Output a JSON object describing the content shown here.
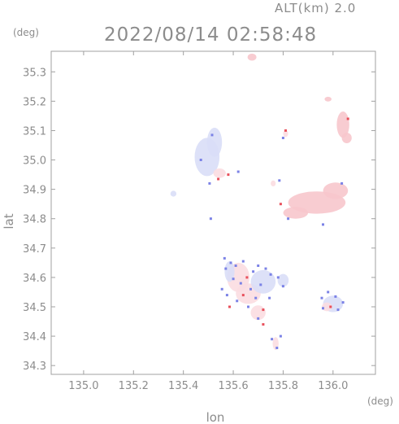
{
  "header": {
    "altitude_label": "ALT(km) 2.0",
    "datetime": "2022/08/14 02:58:48"
  },
  "chart_data": {
    "type": "heatmap",
    "title": "2022/08/14 02:58:48",
    "subtitle": "ALT(km) 2.0",
    "xlabel": "lon",
    "ylabel": "lat",
    "x_unit": "(deg)",
    "y_unit": "(deg)",
    "xlim": [
      134.87,
      136.17
    ],
    "ylim": [
      34.27,
      35.37
    ],
    "x_ticks": [
      135.0,
      135.2,
      135.4,
      135.6,
      135.8,
      136.0
    ],
    "x_tick_labels": [
      "135.0",
      "135.2",
      "135.4",
      "135.6",
      "135.8",
      "136.0"
    ],
    "y_ticks": [
      34.3,
      34.4,
      34.5,
      34.6,
      34.7,
      34.8,
      34.9,
      35.0,
      35.1,
      35.2,
      35.3
    ],
    "y_tick_labels": [
      "34.3",
      "34.4",
      "34.5",
      "34.6",
      "34.7",
      "34.8",
      "34.9",
      "35.0",
      "35.1",
      "35.2",
      "35.3"
    ],
    "grid": false,
    "colors": {
      "axis": "#a0a0a0",
      "text": "#8c8c8c",
      "pink": "#f7c6cc",
      "light_pink": "#fbdde1",
      "light_blue": "#d9def7",
      "blue": "#7b82e6",
      "red": "#e8505c"
    },
    "echo_regions": [
      {
        "name": "north-top-blob",
        "lon": 135.675,
        "lat": 35.35,
        "rlon": 0.018,
        "rlat": 0.012,
        "color": "pink"
      },
      {
        "name": "north-small-pink",
        "lon": 135.98,
        "lat": 35.207,
        "rlon": 0.014,
        "rlat": 0.008,
        "color": "pink"
      },
      {
        "name": "east-pink-strip",
        "lon": 136.04,
        "lat": 35.12,
        "rlon": 0.025,
        "rlat": 0.045,
        "color": "pink"
      },
      {
        "name": "east-pink-strip-2",
        "lon": 136.055,
        "lat": 35.075,
        "rlon": 0.02,
        "rlat": 0.018,
        "color": "pink"
      },
      {
        "name": "central-blue-cloud",
        "lon": 135.495,
        "lat": 35.01,
        "rlon": 0.05,
        "rlat": 0.065,
        "color": "light_blue"
      },
      {
        "name": "central-blue-cloud-2",
        "lon": 135.525,
        "lat": 35.06,
        "rlon": 0.03,
        "rlat": 0.05,
        "color": "light_blue"
      },
      {
        "name": "central-pink-patch",
        "lon": 135.545,
        "lat": 34.955,
        "rlon": 0.025,
        "rlat": 0.016,
        "color": "light_pink"
      },
      {
        "name": "west-blue-dot",
        "lon": 135.36,
        "lat": 34.885,
        "rlon": 0.012,
        "rlat": 0.01,
        "color": "light_blue"
      },
      {
        "name": "main-pink-band",
        "lon": 135.935,
        "lat": 34.855,
        "rlon": 0.115,
        "rlat": 0.038,
        "color": "pink"
      },
      {
        "name": "main-pink-band-2",
        "lon": 136.01,
        "lat": 34.895,
        "rlon": 0.05,
        "rlat": 0.028,
        "color": "pink"
      },
      {
        "name": "main-pink-band-3",
        "lon": 135.85,
        "lat": 34.82,
        "rlon": 0.05,
        "rlat": 0.02,
        "color": "pink"
      },
      {
        "name": "mid-cell-1",
        "lon": 135.81,
        "lat": 35.09,
        "rlon": 0.01,
        "rlat": 0.012,
        "color": "light_pink"
      },
      {
        "name": "mid-cell-2",
        "lon": 135.76,
        "lat": 34.92,
        "rlon": 0.01,
        "rlat": 0.01,
        "color": "light_pink"
      },
      {
        "name": "south-cluster-a",
        "lon": 135.62,
        "lat": 34.6,
        "rlon": 0.045,
        "rlat": 0.05,
        "color": "light_pink"
      },
      {
        "name": "south-cluster-b",
        "lon": 135.66,
        "lat": 34.545,
        "rlon": 0.05,
        "rlat": 0.035,
        "color": "light_pink"
      },
      {
        "name": "south-cluster-c",
        "lon": 135.72,
        "lat": 34.585,
        "rlon": 0.05,
        "rlat": 0.04,
        "color": "light_blue"
      },
      {
        "name": "south-cluster-d",
        "lon": 135.7,
        "lat": 34.48,
        "rlon": 0.03,
        "rlat": 0.025,
        "color": "light_pink"
      },
      {
        "name": "south-cluster-e",
        "lon": 135.8,
        "lat": 34.59,
        "rlon": 0.022,
        "rlat": 0.022,
        "color": "light_blue"
      },
      {
        "name": "south-cluster-f",
        "lon": 135.585,
        "lat": 34.62,
        "rlon": 0.02,
        "rlat": 0.035,
        "color": "light_blue"
      },
      {
        "name": "southeast-cluster",
        "lon": 136.0,
        "lat": 34.51,
        "rlon": 0.04,
        "rlat": 0.028,
        "color": "light_blue"
      },
      {
        "name": "southeast-cluster-2",
        "lon": 135.975,
        "lat": 34.5,
        "rlon": 0.02,
        "rlat": 0.015,
        "color": "light_pink"
      },
      {
        "name": "south-tail",
        "lon": 135.77,
        "lat": 34.375,
        "rlon": 0.012,
        "rlat": 0.022,
        "color": "light_pink"
      }
    ],
    "echo_cells": [
      {
        "lon": 135.515,
        "lat": 35.085,
        "color": "blue"
      },
      {
        "lon": 135.47,
        "lat": 35.0,
        "color": "blue"
      },
      {
        "lon": 135.54,
        "lat": 34.935,
        "color": "red"
      },
      {
        "lon": 135.505,
        "lat": 34.92,
        "color": "blue"
      },
      {
        "lon": 135.58,
        "lat": 34.95,
        "color": "red"
      },
      {
        "lon": 135.62,
        "lat": 34.96,
        "color": "blue"
      },
      {
        "lon": 135.81,
        "lat": 35.1,
        "color": "red"
      },
      {
        "lon": 135.8,
        "lat": 35.075,
        "color": "blue"
      },
      {
        "lon": 135.785,
        "lat": 34.93,
        "color": "blue"
      },
      {
        "lon": 135.79,
        "lat": 34.85,
        "color": "red"
      },
      {
        "lon": 135.82,
        "lat": 34.8,
        "color": "blue"
      },
      {
        "lon": 135.96,
        "lat": 34.78,
        "color": "blue"
      },
      {
        "lon": 136.06,
        "lat": 35.14,
        "color": "red"
      },
      {
        "lon": 136.035,
        "lat": 34.92,
        "color": "blue"
      },
      {
        "lon": 135.51,
        "lat": 34.8,
        "color": "blue"
      },
      {
        "lon": 135.565,
        "lat": 34.665,
        "color": "blue"
      },
      {
        "lon": 135.59,
        "lat": 34.65,
        "color": "blue"
      },
      {
        "lon": 135.61,
        "lat": 34.64,
        "color": "blue"
      },
      {
        "lon": 135.64,
        "lat": 34.655,
        "color": "blue"
      },
      {
        "lon": 135.57,
        "lat": 34.63,
        "color": "blue"
      },
      {
        "lon": 135.6,
        "lat": 34.595,
        "color": "blue"
      },
      {
        "lon": 135.63,
        "lat": 34.58,
        "color": "blue"
      },
      {
        "lon": 135.655,
        "lat": 34.6,
        "color": "red"
      },
      {
        "lon": 135.68,
        "lat": 34.62,
        "color": "blue"
      },
      {
        "lon": 135.7,
        "lat": 34.64,
        "color": "blue"
      },
      {
        "lon": 135.73,
        "lat": 34.63,
        "color": "blue"
      },
      {
        "lon": 135.75,
        "lat": 34.61,
        "color": "blue"
      },
      {
        "lon": 135.78,
        "lat": 34.6,
        "color": "blue"
      },
      {
        "lon": 135.8,
        "lat": 34.57,
        "color": "blue"
      },
      {
        "lon": 135.71,
        "lat": 34.575,
        "color": "blue"
      },
      {
        "lon": 135.67,
        "lat": 34.56,
        "color": "blue"
      },
      {
        "lon": 135.64,
        "lat": 34.54,
        "color": "red"
      },
      {
        "lon": 135.615,
        "lat": 34.52,
        "color": "blue"
      },
      {
        "lon": 135.585,
        "lat": 34.5,
        "color": "red"
      },
      {
        "lon": 135.66,
        "lat": 34.5,
        "color": "blue"
      },
      {
        "lon": 135.69,
        "lat": 34.53,
        "color": "blue"
      },
      {
        "lon": 135.72,
        "lat": 34.49,
        "color": "red"
      },
      {
        "lon": 135.745,
        "lat": 34.53,
        "color": "blue"
      },
      {
        "lon": 135.7,
        "lat": 34.46,
        "color": "blue"
      },
      {
        "lon": 135.72,
        "lat": 34.44,
        "color": "red"
      },
      {
        "lon": 135.755,
        "lat": 34.39,
        "color": "blue"
      },
      {
        "lon": 135.775,
        "lat": 34.36,
        "color": "blue"
      },
      {
        "lon": 135.79,
        "lat": 34.4,
        "color": "blue"
      },
      {
        "lon": 135.955,
        "lat": 34.53,
        "color": "blue"
      },
      {
        "lon": 135.98,
        "lat": 34.55,
        "color": "blue"
      },
      {
        "lon": 136.01,
        "lat": 34.535,
        "color": "blue"
      },
      {
        "lon": 136.04,
        "lat": 34.515,
        "color": "blue"
      },
      {
        "lon": 135.99,
        "lat": 34.5,
        "color": "red"
      },
      {
        "lon": 135.96,
        "lat": 34.495,
        "color": "blue"
      },
      {
        "lon": 136.02,
        "lat": 34.49,
        "color": "blue"
      },
      {
        "lon": 135.555,
        "lat": 34.56,
        "color": "blue"
      },
      {
        "lon": 135.575,
        "lat": 34.54,
        "color": "blue"
      }
    ]
  }
}
